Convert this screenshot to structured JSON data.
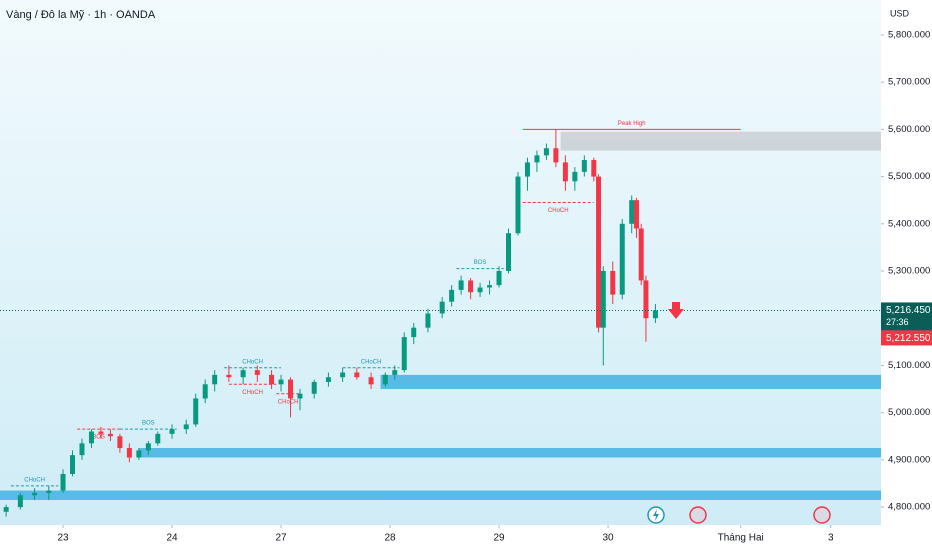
{
  "chart_data": {
    "type": "candlestick",
    "title": "Vàng / Đô la Mỹ · 1h · OANDA",
    "currency": "USD",
    "up_color": "#089981",
    "down_color": "#f23645",
    "xlim": [
      -13.3,
      172.6
    ],
    "xticks": [
      {
        "value": 0,
        "label": "23"
      },
      {
        "value": 23,
        "label": "24"
      },
      {
        "value": 46,
        "label": "27"
      },
      {
        "value": 69,
        "label": "28"
      },
      {
        "value": 92,
        "label": "29"
      },
      {
        "value": 115,
        "label": "30"
      },
      {
        "value": 143,
        "label": "Tháng Hai"
      },
      {
        "value": 162,
        "label": "3"
      }
    ],
    "ylim": [
      4762,
      5874
    ],
    "yticks": [
      {
        "value": 4800,
        "label": "4,800.000"
      },
      {
        "value": 4900,
        "label": "4,900.000"
      },
      {
        "value": 5000,
        "label": "5,000.000"
      },
      {
        "value": 5100,
        "label": "5,100.000"
      },
      {
        "value": 5200,
        "label": "5,200.000"
      },
      {
        "value": 5300,
        "label": "5,300.000"
      },
      {
        "value": 5400,
        "label": "5,400.000"
      },
      {
        "value": 5500,
        "label": "5,500.000"
      },
      {
        "value": 5600,
        "label": "5,600.000"
      },
      {
        "value": 5700,
        "label": "5,700.000"
      },
      {
        "value": 5800,
        "label": "5,800.000"
      }
    ],
    "x": [
      -12,
      -9,
      -6,
      -3,
      0,
      2,
      4,
      6,
      8,
      10,
      12,
      14,
      16,
      18,
      20,
      23,
      26,
      28,
      30,
      32,
      35,
      38,
      41,
      44,
      46,
      48,
      50,
      53,
      56,
      59,
      62,
      65,
      68,
      70,
      72,
      74,
      77,
      80,
      82,
      84,
      86,
      88,
      90,
      92,
      94,
      96,
      98,
      100,
      102,
      104,
      106,
      108,
      110,
      112,
      113,
      114,
      116,
      118,
      120,
      121,
      122,
      123,
      125
    ],
    "open": [
      4790,
      4800,
      4825,
      4830,
      4835,
      4870,
      4910,
      4935,
      4960,
      4955,
      4950,
      4925,
      4905,
      4920,
      4935,
      4955,
      4965,
      4975,
      5030,
      5060,
      5080,
      5075,
      5090,
      5080,
      5060,
      5070,
      5030,
      5040,
      5065,
      5075,
      5085,
      5075,
      5060,
      5080,
      5090,
      5160,
      5180,
      5210,
      5235,
      5260,
      5280,
      5255,
      5265,
      5270,
      5300,
      5380,
      5500,
      5530,
      5545,
      5560,
      5530,
      5490,
      5510,
      5535,
      5500,
      5180,
      5300,
      5250,
      5400,
      5450,
      5390,
      5280,
      5200
    ],
    "high": [
      4805,
      4830,
      4840,
      4845,
      4880,
      4920,
      4945,
      4965,
      4970,
      4965,
      4955,
      4935,
      4925,
      4940,
      4960,
      4975,
      4985,
      5040,
      5070,
      5090,
      5100,
      5095,
      5100,
      5090,
      5080,
      5075,
      5050,
      5070,
      5085,
      5095,
      5095,
      5085,
      5085,
      5100,
      5170,
      5190,
      5220,
      5245,
      5270,
      5290,
      5285,
      5275,
      5280,
      5310,
      5390,
      5510,
      5540,
      5555,
      5570,
      5600,
      5545,
      5520,
      5545,
      5540,
      5505,
      5310,
      5320,
      5410,
      5460,
      5455,
      5400,
      5290,
      5230
    ],
    "low": [
      4780,
      4795,
      4815,
      4815,
      4830,
      4865,
      4900,
      4925,
      4945,
      4940,
      4915,
      4895,
      4900,
      4910,
      4930,
      4945,
      4955,
      4970,
      5020,
      5045,
      5065,
      5060,
      5065,
      5050,
      5045,
      4990,
      5005,
      5030,
      5055,
      5065,
      5070,
      5050,
      5055,
      5070,
      5085,
      5145,
      5170,
      5200,
      5225,
      5250,
      5240,
      5245,
      5250,
      5265,
      5295,
      5375,
      5470,
      5510,
      5535,
      5520,
      5470,
      5470,
      5500,
      5490,
      5170,
      5100,
      5230,
      5240,
      5380,
      5370,
      5270,
      5150,
      5190
    ],
    "close": [
      4800,
      4825,
      4830,
      4835,
      4870,
      4910,
      4935,
      4960,
      4955,
      4950,
      4925,
      4905,
      4920,
      4935,
      4955,
      4965,
      4975,
      5030,
      5060,
      5080,
      5075,
      5090,
      5080,
      5060,
      5070,
      5030,
      5040,
      5065,
      5075,
      5085,
      5075,
      5060,
      5080,
      5090,
      5160,
      5180,
      5210,
      5235,
      5260,
      5280,
      5255,
      5265,
      5270,
      5300,
      5380,
      5500,
      5530,
      5545,
      5560,
      5530,
      5490,
      5510,
      5535,
      5500,
      5180,
      5300,
      5250,
      5400,
      5450,
      5390,
      5280,
      5200,
      5216.45
    ],
    "zones": [
      {
        "low": 5555,
        "high": 5595,
        "x_start": 105,
        "color": "#c5c9cf"
      },
      {
        "low": 5050,
        "high": 5080,
        "x_start": 67,
        "color": "#2fa8e0"
      },
      {
        "low": 4905,
        "high": 4925,
        "x_start": 16,
        "color": "#2fa8e0"
      },
      {
        "low": 4815,
        "high": 4835,
        "x_start": -13.3,
        "color": "#2fa8e0"
      }
    ],
    "annotations": [
      {
        "text": "CHoCH",
        "price": 4845,
        "x": [
          -11,
          -1
        ],
        "color": "#1f9aa8"
      },
      {
        "text": "BOS",
        "price": 4965,
        "x": [
          3,
          12
        ],
        "color": "#f23645"
      },
      {
        "text": "BOS",
        "price": 4965,
        "x": [
          12,
          24
        ],
        "color": "#1f9aa8"
      },
      {
        "text": "CHoCH",
        "price": 5095,
        "x": [
          34,
          46
        ],
        "color": "#1f9aa8"
      },
      {
        "text": "CHoCH",
        "price": 5060,
        "x": [
          35,
          45
        ],
        "color": "#f23645"
      },
      {
        "text": "CHoCH",
        "price": 5040,
        "x": [
          45,
          50
        ],
        "color": "#f23645"
      },
      {
        "text": "CHoCH",
        "price": 5095,
        "x": [
          59,
          71
        ],
        "color": "#1f9aa8"
      },
      {
        "text": "BOS",
        "price": 5305,
        "x": [
          83,
          93
        ],
        "color": "#1f9aa8"
      },
      {
        "text": "CHoCH",
        "price": 5445,
        "x": [
          97,
          112
        ],
        "color": "#f23645"
      },
      {
        "text": "Peak High",
        "price": 5600,
        "x": [
          97,
          143
        ],
        "color": "#f23645"
      }
    ],
    "last_price": {
      "value": 5216.45,
      "label": "5,216.450"
    },
    "countdown": "27:36",
    "bid_label": "5,212.550"
  }
}
